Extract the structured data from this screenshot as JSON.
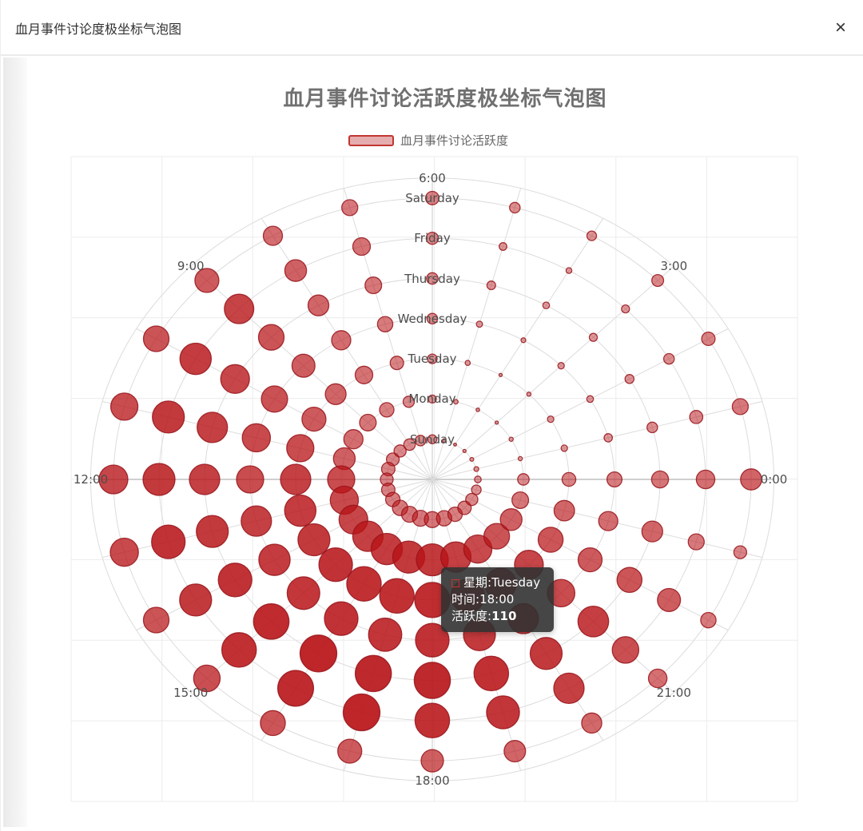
{
  "window": {
    "title": "血月事件讨论度极坐标气泡图",
    "close_icon": "×"
  },
  "chart": {
    "title": "血月事件讨论活跃度极坐标气泡图",
    "legend_label": "血月事件讨论活跃度"
  },
  "tooltip": {
    "sep": ": ",
    "rows": [
      {
        "label": "星期",
        "value": "Tuesday"
      },
      {
        "label": "时间",
        "value": "18:00"
      },
      {
        "label": "活跃度",
        "value": "110"
      }
    ]
  },
  "chart_data": {
    "type": "scatter",
    "coordinate": "polar",
    "title": "血月事件讨论活跃度极坐标气泡图",
    "legend": [
      "血月事件讨论活跃度"
    ],
    "angle_axis": {
      "unit": "hour",
      "categories": [
        "0:00",
        "1:00",
        "2:00",
        "3:00",
        "4:00",
        "5:00",
        "6:00",
        "7:00",
        "8:00",
        "9:00",
        "10:00",
        "11:00",
        "12:00",
        "13:00",
        "14:00",
        "15:00",
        "16:00",
        "17:00",
        "18:00",
        "19:00",
        "20:00",
        "21:00",
        "22:00",
        "23:00"
      ],
      "labeled_every_hours": 3,
      "start_angle_deg": 0,
      "direction": "counterclockwise"
    },
    "radius_axis": {
      "categories": [
        "Sunday",
        "Monday",
        "Tuesday",
        "Wednesday",
        "Thursday",
        "Friday",
        "Saturday"
      ],
      "order": "inner_to_outer"
    },
    "series": [
      {
        "name": "血月事件讨论活跃度",
        "values": [
          [
            21,
            15,
            12,
            10,
            9,
            11,
            28,
            33,
            36,
            38,
            40,
            42,
            40,
            42,
            45,
            48,
            50,
            50,
            50,
            48,
            45,
            42,
            38,
            30
          ],
          [
            36,
            13,
            13,
            10,
            11,
            14,
            25,
            35,
            45,
            52,
            60,
            68,
            85,
            88,
            90,
            95,
            98,
            100,
            100,
            95,
            88,
            80,
            68,
            52
          ],
          [
            43,
            20,
            20,
            13,
            10,
            16,
            30,
            42,
            55,
            65,
            75,
            85,
            95,
            98,
            100,
            105,
            108,
            108,
            110,
            105,
            98,
            90,
            78,
            64
          ],
          [
            47,
            26,
            21,
            20,
            15,
            19,
            33,
            48,
            60,
            72,
            82,
            88,
            85,
            95,
            98,
            102,
            105,
            104,
            105,
            100,
            94,
            86,
            75,
            60
          ],
          [
            53,
            33,
            28,
            25,
            21,
            27,
            36,
            52,
            65,
            80,
            90,
            95,
            95,
            100,
            105,
            111,
            115,
            113,
            113,
            108,
            100,
            96,
            78,
            65
          ],
          [
            58,
            41,
            33,
            25,
            18,
            24,
            38,
            55,
            68,
            92,
            98,
            100,
            100,
            105,
            100,
            108,
            112,
            115,
            108,
            103,
            95,
            83,
            72,
            50
          ],
          [
            66,
            50,
            42,
            37,
            30,
            33,
            42,
            50,
            60,
            75,
            80,
            85,
            90,
            88,
            80,
            83,
            78,
            75,
            70,
            67,
            63,
            58,
            48,
            40
          ]
        ]
      }
    ],
    "size_rule": "bubble_radius_px = value / 5",
    "opacity_rule": "fill_opacity = 0.30 + 0.62 * value / 115 (max 0.92)",
    "highlighted_point": {
      "day": "Tuesday",
      "hour": "18:00",
      "value": 110
    },
    "colors": {
      "bubble_fill": "#b81418",
      "bubble_border": "#96141a",
      "ring_line": "#dcdcdc",
      "spoke_line": "#dcdcdc",
      "cardinal_spoke_line": "#c9c9c9",
      "axis_line": "#b8b8b8",
      "grid_line": "#ececec",
      "legend_border": "#c23531",
      "tooltip_bg": "rgba(50,50,50,0.9)"
    }
  }
}
